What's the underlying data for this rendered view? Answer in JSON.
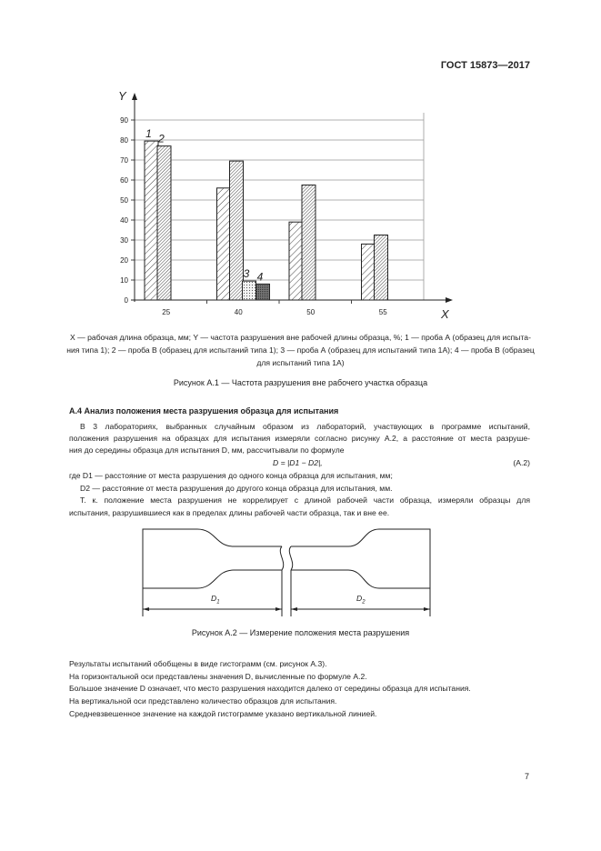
{
  "header": {
    "doc_code": "ГОСТ 15873—2017"
  },
  "chart_data": {
    "type": "bar",
    "xlabel": "X",
    "ylabel": "Y",
    "categories": [
      "25",
      "40",
      "50",
      "55"
    ],
    "yticks": [
      "0",
      "10",
      "20",
      "30",
      "40",
      "50",
      "60",
      "70",
      "80",
      "90"
    ],
    "ylim": [
      0,
      90
    ],
    "grid": true,
    "series": [
      {
        "name": "1",
        "pattern": "sparse-hatch",
        "values": [
          79.5,
          56,
          39,
          28
        ]
      },
      {
        "name": "2",
        "pattern": "dense-hatch",
        "values": [
          77,
          69.5,
          57.5,
          32.5
        ]
      },
      {
        "name": "3",
        "pattern": "dots",
        "values": [
          null,
          9.5,
          null,
          null
        ]
      },
      {
        "name": "4",
        "pattern": "dark-crosshatch",
        "values": [
          null,
          8,
          null,
          null
        ]
      }
    ]
  },
  "figure1": {
    "legend_lines": [
      "X — рабочая длина образца, мм; Y — частота разрушения вне рабочей длины образца, %; 1 — проба А (образец для испыта-",
      "ния типа 1); 2 — проба В (образец для испытаний типа 1); 3 — проба А (образец для испытаний типа 1А); 4 — проба В (образец",
      "для испытаний типа 1А)"
    ],
    "caption": "Рисунок А.1 — Частота разрушения вне рабочего участка образца"
  },
  "section": {
    "heading": "А.4 Анализ положения места разрушения образца для испытания",
    "para1": [
      "В 3 лабораториях, выбранных случайным образом из лабораторий, участвующих в программе испытаний,",
      "положения разрушения на образцах для испытания измеряли согласно рисунку А.2, а расстояние от места разруше-",
      "ния до середины образца для испытания D, мм, рассчитывали по формуле"
    ],
    "formula": "D = |D1 − D2|,",
    "formula_number": "(А.2)",
    "where1": "где D1 — расстояние от места разрушения до одного конца образца для испытания, мм;",
    "where2": "D2 — расстояние от места разрушения до другого конца образца для испытания, мм.",
    "para2": [
      "Т. к. положение места разрушения не коррелирует с длиной рабочей части образца, измеряли образцы для",
      "испытания, разрушившиеся как в пределах длины рабочей части образца, так и вне ее."
    ]
  },
  "figure2": {
    "label_d1": "D1",
    "label_d2": "D2",
    "caption": "Рисунок А.2 — Измерение положения места разрушения"
  },
  "results": [
    "Результаты испытаний обобщены в виде гистограмм (см. рисунок А.3).",
    "На горизонтальной оси представлены значения D, вычисленные по формуле А.2.",
    "Большое значение D означает, что место разрушения находится далеко от середины образца для испытания.",
    "На вертикальной оси представлено количество образцов для испытания.",
    "Средневзвешенное значение на каждой гистограмме указано вертикальной линией."
  ],
  "page_number": "7"
}
